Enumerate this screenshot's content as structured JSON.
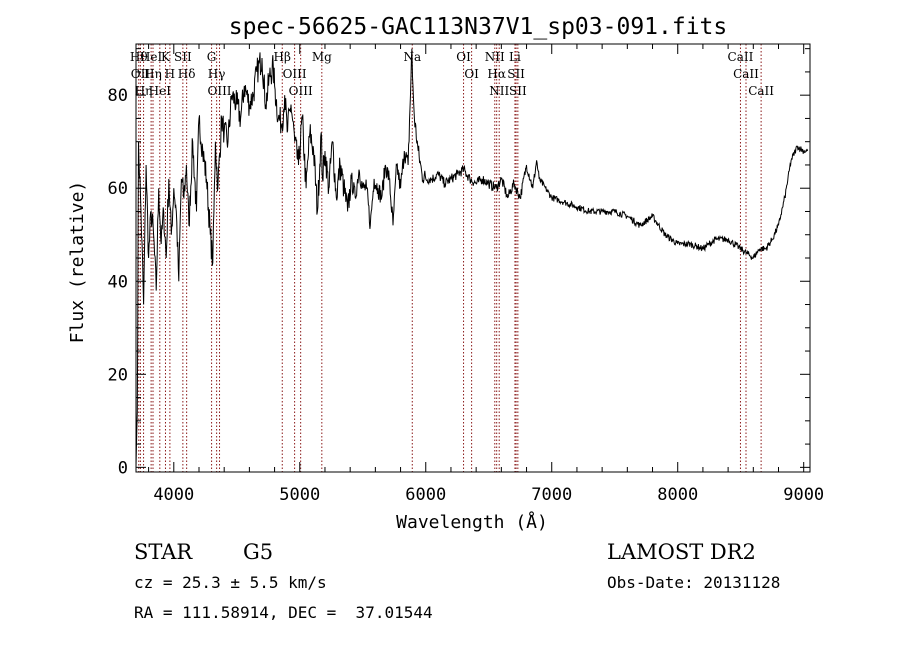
{
  "chart_data": {
    "type": "line",
    "title": "spec-56625-GAC113N37V1_sp03-091.fits",
    "xlabel": "Wavelength (Å)",
    "ylabel": "Flux (relative)",
    "xlim": [
      3700,
      9050
    ],
    "ylim": [
      -1,
      91
    ],
    "xticks": [
      4000,
      5000,
      6000,
      7000,
      8000,
      9000
    ],
    "yticks": [
      0,
      20,
      40,
      60,
      80
    ],
    "grid": false,
    "line_color": "#000000",
    "marker_color": "#8b1a1a",
    "series": [
      {
        "x": [
          3700,
          3710,
          3720,
          3740,
          3760,
          3780,
          3800,
          3820,
          3840,
          3860,
          3880,
          3900,
          3920,
          3940,
          3960,
          3980,
          4000,
          4020,
          4040,
          4060,
          4080,
          4100,
          4120,
          4150,
          4180,
          4200,
          4230,
          4260,
          4290,
          4310,
          4330,
          4350,
          4380,
          4400,
          4430,
          4460,
          4500,
          4530,
          4560,
          4600,
          4630,
          4660,
          4700,
          4730,
          4760,
          4790,
          4800,
          4830,
          4860,
          4880,
          4900,
          4930,
          4960,
          4990,
          5020,
          5050,
          5080,
          5110,
          5140,
          5170,
          5180,
          5200,
          5230,
          5260,
          5290,
          5320,
          5350,
          5380,
          5410,
          5440,
          5470,
          5500,
          5530,
          5560,
          5590,
          5620,
          5650,
          5680,
          5710,
          5740,
          5770,
          5800,
          5830,
          5860,
          5890,
          5895,
          5910,
          5940,
          5970,
          6000,
          6050,
          6100,
          6150,
          6200,
          6250,
          6300,
          6350,
          6400,
          6450,
          6500,
          6560,
          6600,
          6650,
          6700,
          6750,
          6800,
          6850,
          6880,
          6900,
          6950,
          7000,
          7100,
          7200,
          7300,
          7400,
          7500,
          7600,
          7700,
          7800,
          7900,
          8000,
          8100,
          8200,
          8300,
          8400,
          8500,
          8550,
          8600,
          8650,
          8700,
          8750,
          8800,
          8850,
          8900,
          8950,
          9000,
          9030
        ],
        "y": [
          0,
          12,
          70,
          55,
          35,
          65,
          45,
          55,
          50,
          38,
          60,
          48,
          55,
          45,
          62,
          50,
          60,
          55,
          40,
          62,
          58,
          65,
          52,
          70,
          55,
          75,
          68,
          62,
          50,
          44,
          70,
          60,
          75,
          72,
          70,
          80,
          78,
          75,
          82,
          78,
          80,
          85,
          88,
          78,
          84,
          86,
          82,
          75,
          74,
          80,
          72,
          78,
          70,
          65,
          75,
          60,
          72,
          68,
          55,
          72,
          62,
          68,
          60,
          70,
          58,
          65,
          60,
          55,
          62,
          58,
          64,
          60,
          60,
          52,
          62,
          60,
          58,
          65,
          62,
          52,
          65,
          60,
          68,
          65,
          90,
          84,
          75,
          68,
          63,
          62,
          62,
          63,
          61,
          62,
          63,
          64,
          62,
          61,
          62,
          61,
          60,
          62,
          58,
          61,
          58,
          65,
          60,
          66,
          62,
          60,
          58,
          57,
          56,
          55,
          55,
          55,
          54,
          52,
          54,
          50,
          48,
          48,
          47,
          49,
          49,
          47,
          46,
          45,
          47,
          47,
          49,
          52,
          58,
          66,
          69,
          68,
          68
        ]
      }
    ],
    "line_markers": [
      {
        "x": 3722,
        "label": "Hθ"
      },
      {
        "x": 3735,
        "label": "OII"
      },
      {
        "x": 3760,
        "label": "Hη"
      },
      {
        "x": 3820,
        "label": "HeI"
      },
      {
        "x": 3835,
        "label": "Hη"
      },
      {
        "x": 3889,
        "label": "HeI"
      },
      {
        "x": 3934,
        "label": "K"
      },
      {
        "x": 3969,
        "label": "H"
      },
      {
        "x": 4072,
        "label": "SII"
      },
      {
        "x": 4102,
        "label": "Hδ"
      },
      {
        "x": 4300,
        "label": "G"
      },
      {
        "x": 4340,
        "label": "Hγ"
      },
      {
        "x": 4363,
        "label": "OIII"
      },
      {
        "x": 4861,
        "label": "Hβ"
      },
      {
        "x": 4959,
        "label": "OIII"
      },
      {
        "x": 5007,
        "label": "OIII"
      },
      {
        "x": 5175,
        "label": "Mg"
      },
      {
        "x": 5893,
        "label": "Na"
      },
      {
        "x": 6300,
        "label": "OI"
      },
      {
        "x": 6364,
        "label": "OI"
      },
      {
        "x": 6548,
        "label": "NII"
      },
      {
        "x": 6563,
        "label": "Hα"
      },
      {
        "x": 6583,
        "label": "NII"
      },
      {
        "x": 6708,
        "label": "Li"
      },
      {
        "x": 6717,
        "label": "SII"
      },
      {
        "x": 6731,
        "label": "SII"
      },
      {
        "x": 8498,
        "label": "CaII"
      },
      {
        "x": 8542,
        "label": "CaII"
      },
      {
        "x": 8662,
        "label": "CaII"
      }
    ]
  },
  "footer": {
    "class_type": "STAR",
    "subclass": "G5",
    "survey": "LAMOST DR2",
    "redshift": "cz = 25.3 ± 5.5 km/s",
    "obs_date": "Obs-Date: 20131128",
    "coords": "RA = 111.58914, DEC =  37.01544"
  }
}
